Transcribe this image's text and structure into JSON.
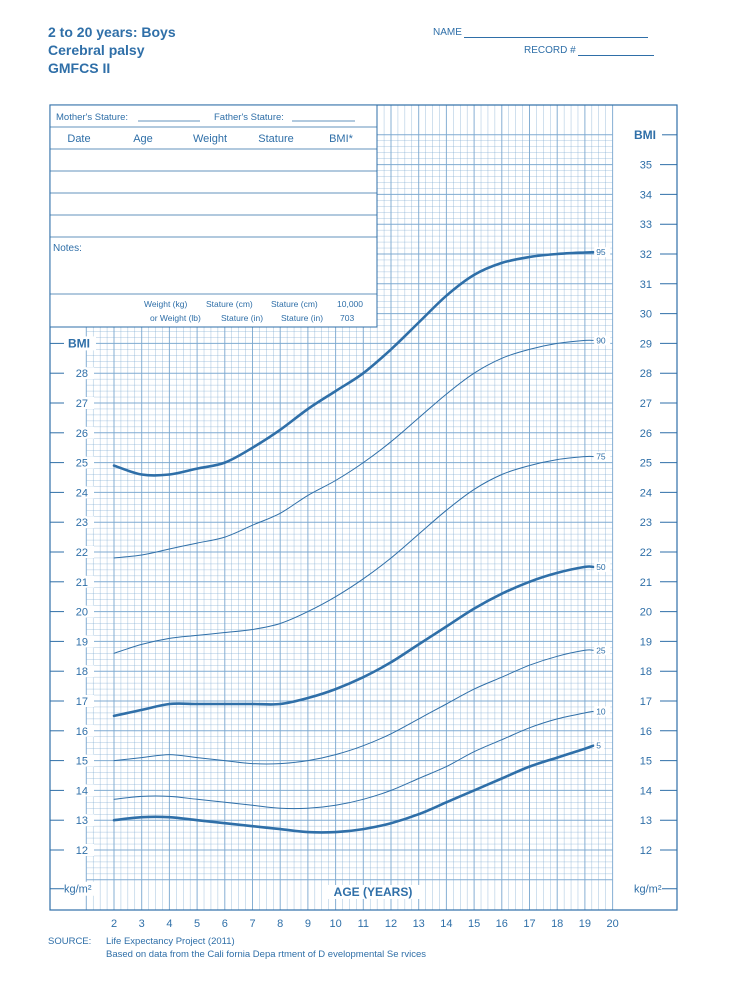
{
  "header": {
    "title_line1": "2 to 20 years: Boys",
    "title_line2": "Cerebral palsy",
    "title_line3": "GMFCS II",
    "name_label": "NAME",
    "record_label": "RECORD #"
  },
  "table": {
    "mothers_stature": "Mother's Stature:",
    "fathers_stature": "Father's Stature:",
    "columns": [
      "Date",
      "Age",
      "Weight",
      "Stature",
      "BMI*"
    ],
    "notes_label": "Notes:",
    "formula_top": [
      "Weight (kg)",
      "Stature (cm)",
      "Stature (cm)",
      "10,000"
    ],
    "formula_bottom": [
      "or Weight (lb)",
      "Stature (in)",
      "Stature (in)",
      "703"
    ]
  },
  "source": {
    "label": "SOURCE:",
    "line1": "Life Expectancy Project (2011)",
    "line2": "Based on data from the Cali    fornia Depa  rtment of D evelopmental Se  rvices"
  },
  "colors": {
    "primary": "#2f6fa8",
    "grid": "#7aa7cf"
  },
  "chart_data": {
    "type": "line",
    "xlabel": "AGE (YEARS)",
    "ylabel": "BMI",
    "yunit": "kg/m²",
    "xlim": [
      1,
      20
    ],
    "ylim": [
      11,
      36
    ],
    "x_ticks": [
      2,
      3,
      4,
      5,
      6,
      7,
      8,
      9,
      10,
      11,
      12,
      13,
      14,
      15,
      16,
      17,
      18,
      19,
      20
    ],
    "y_ticks_right": [
      12,
      13,
      14,
      15,
      16,
      17,
      18,
      19,
      20,
      21,
      22,
      23,
      24,
      25,
      26,
      27,
      28,
      29,
      30,
      31,
      32,
      33,
      34,
      35
    ],
    "y_ticks_left": [
      12,
      13,
      14,
      15,
      16,
      17,
      18,
      19,
      20,
      21,
      22,
      23,
      24,
      25,
      26,
      27,
      28
    ],
    "x": [
      2,
      3,
      4,
      5,
      6,
      7,
      8,
      9,
      10,
      11,
      12,
      13,
      14,
      15,
      16,
      17,
      18,
      19,
      19.3
    ],
    "series": [
      {
        "name": "95",
        "bold": true,
        "values": [
          24.9,
          24.6,
          24.6,
          24.8,
          25.0,
          25.5,
          26.1,
          26.8,
          27.4,
          28.0,
          28.8,
          29.7,
          30.6,
          31.3,
          31.7,
          31.9,
          32.0,
          32.05,
          32.06
        ]
      },
      {
        "name": "90",
        "bold": false,
        "values": [
          21.8,
          21.9,
          22.1,
          22.3,
          22.5,
          22.9,
          23.3,
          23.9,
          24.4,
          25.0,
          25.7,
          26.5,
          27.3,
          28.0,
          28.5,
          28.8,
          29.0,
          29.1,
          29.1
        ]
      },
      {
        "name": "75",
        "bold": false,
        "values": [
          18.6,
          18.9,
          19.1,
          19.2,
          19.3,
          19.4,
          19.6,
          20.0,
          20.5,
          21.1,
          21.8,
          22.6,
          23.4,
          24.1,
          24.6,
          24.9,
          25.1,
          25.2,
          25.2
        ]
      },
      {
        "name": "50",
        "bold": true,
        "values": [
          16.5,
          16.7,
          16.9,
          16.9,
          16.9,
          16.9,
          16.9,
          17.1,
          17.4,
          17.8,
          18.3,
          18.9,
          19.5,
          20.1,
          20.6,
          21.0,
          21.3,
          21.5,
          21.5
        ]
      },
      {
        "name": "25",
        "bold": false,
        "values": [
          15.0,
          15.1,
          15.2,
          15.1,
          15.0,
          14.9,
          14.9,
          15.0,
          15.2,
          15.5,
          15.9,
          16.4,
          16.9,
          17.4,
          17.8,
          18.2,
          18.5,
          18.7,
          18.7
        ]
      },
      {
        "name": "10",
        "bold": false,
        "values": [
          13.7,
          13.8,
          13.8,
          13.7,
          13.6,
          13.5,
          13.4,
          13.4,
          13.5,
          13.7,
          14.0,
          14.4,
          14.8,
          15.3,
          15.7,
          16.1,
          16.4,
          16.6,
          16.65
        ]
      },
      {
        "name": "5",
        "bold": true,
        "values": [
          13.0,
          13.1,
          13.1,
          13.0,
          12.9,
          12.8,
          12.7,
          12.6,
          12.6,
          12.7,
          12.9,
          13.2,
          13.6,
          14.0,
          14.4,
          14.8,
          15.1,
          15.4,
          15.5
        ]
      }
    ]
  }
}
